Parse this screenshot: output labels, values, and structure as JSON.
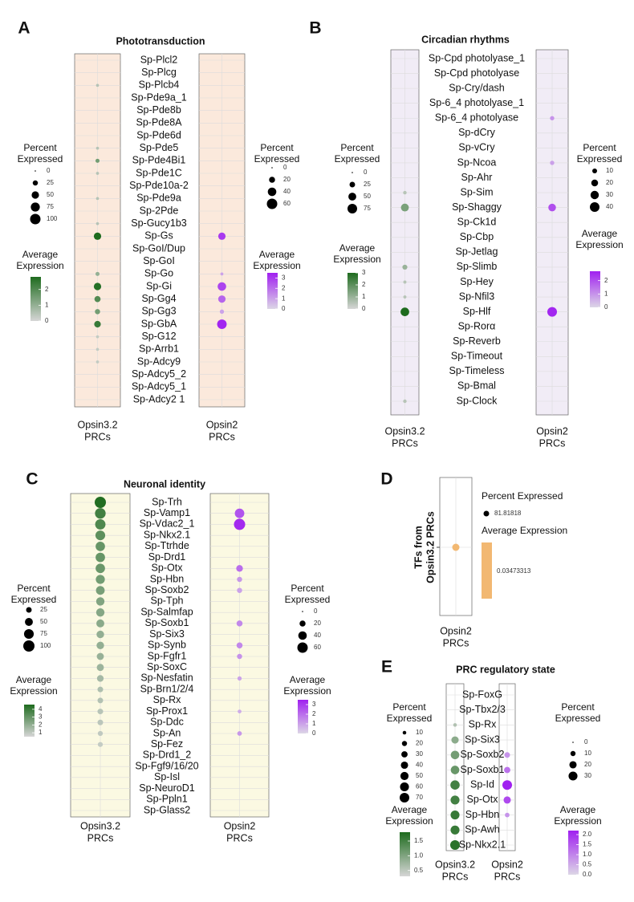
{
  "chart_data": [
    {
      "type": "dotplot",
      "panel": "A",
      "title": "Phototransduction",
      "categories": [
        "Sp-Plcl2",
        "Sp-Plcg",
        "Sp-Plcb4",
        "Sp-Pde9a_1",
        "Sp-Pde8b",
        "Sp-Pde8A",
        "Sp-Pde6d",
        "Sp-Pde5",
        "Sp-Pde4Bi1",
        "Sp-Pde1C",
        "Sp-Pde10a-2",
        "Sp-Pde9a",
        "Sp-2Pde",
        "Sp-Gucy1b3",
        "Sp-Gs",
        "Sp-GoI/Dup",
        "Sp-GoI",
        "Sp-Go",
        "Sp-Gi",
        "Sp-Gg4",
        "Sp-Gg3",
        "Sp-GbA",
        "Sp-G12",
        "Sp-Arrb1",
        "Sp-Adcy9",
        "Sp-Adcy5_2",
        "Sp-Adcy5_1",
        "Sp-Adcy2 1"
      ],
      "background": "#fbe9dc",
      "series": [
        {
          "label": [
            "Opsin3.2",
            "PRCs"
          ],
          "color_low": "#d6d6d6",
          "color_high": "#1e6b1e",
          "percent": [
            null,
            null,
            8,
            null,
            null,
            null,
            null,
            8,
            15,
            8,
            null,
            8,
            null,
            8,
            50,
            null,
            null,
            15,
            50,
            35,
            25,
            40,
            8,
            8,
            8,
            null,
            null,
            null
          ],
          "average": [
            null,
            null,
            0.5,
            null,
            null,
            null,
            null,
            0.5,
            1.5,
            0.5,
            null,
            0.5,
            null,
            0.5,
            2.8,
            null,
            null,
            1,
            2.7,
            2,
            1.5,
            2.4,
            0.3,
            0.3,
            0.3,
            null,
            null,
            null
          ],
          "size_title": [
            "Percent",
            "Expressed"
          ],
          "size_lim": [
            0,
            100
          ],
          "size_ticks": [
            0,
            25,
            50,
            75,
            100
          ],
          "color_title": [
            "Average",
            "Expression"
          ],
          "color_lim": [
            0,
            2.8
          ],
          "color_ticks": [
            0,
            1,
            2
          ]
        },
        {
          "label": [
            "Opsin2",
            "PRCs"
          ],
          "color_low": "#dcd6e6",
          "color_high": "#a020f0",
          "percent": [
            null,
            null,
            null,
            null,
            null,
            null,
            null,
            null,
            null,
            null,
            null,
            null,
            null,
            null,
            30,
            null,
            null,
            5,
            40,
            30,
            10,
            50,
            null,
            null,
            null,
            null,
            null,
            null
          ],
          "average": [
            null,
            null,
            null,
            null,
            null,
            null,
            null,
            null,
            null,
            null,
            null,
            null,
            null,
            null,
            3,
            null,
            null,
            1,
            2.8,
            2.2,
            1,
            3.4,
            null,
            null,
            null,
            null,
            null,
            null
          ],
          "size_title": [
            "Percent",
            "Expressed"
          ],
          "size_lim": [
            0,
            60
          ],
          "size_ticks": [
            0,
            20,
            40,
            60
          ],
          "color_title": [
            "Average",
            "Expression"
          ],
          "color_lim": [
            0,
            3.5
          ],
          "color_ticks": [
            0,
            1,
            2,
            3
          ]
        }
      ]
    },
    {
      "type": "dotplot",
      "panel": "B",
      "title": "Circadian rhythms",
      "categories": [
        "Sp-Cpd photolyase_1",
        "Sp-Cpd photolyase",
        "Sp-Cry/dash",
        "Sp-6_4 photolyase_1",
        "Sp-6_4 photolyase",
        "Sp-dCry",
        "Sp-vCry",
        "Sp-Ncoa",
        "Sp-Ahr",
        "Sp-Sim",
        "Sp-Shaggy",
        "Sp-Ck1d",
        "Sp-Cbp",
        "Sp-Jetlag",
        "Sp-Slimb",
        "Sp-Hey",
        "Sp-Nfil3",
        "Sp-Hlf",
        "Sp-Rorα",
        "Sp-Reverb",
        "Sp-Timeout",
        "Sp-Timeless",
        "Sp-Bmal",
        "Sp-Clock"
      ],
      "background": "#f1ecf6",
      "series": [
        {
          "label": [
            "Opsin3.2",
            "PRCs"
          ],
          "color_low": "#d6d6d6",
          "color_high": "#1e6b1e",
          "percent": [
            null,
            null,
            null,
            null,
            null,
            null,
            null,
            null,
            null,
            10,
            50,
            null,
            null,
            null,
            20,
            8,
            8,
            60,
            null,
            null,
            null,
            null,
            null,
            10
          ],
          "average": [
            null,
            null,
            null,
            null,
            null,
            null,
            null,
            null,
            null,
            0.5,
            1.5,
            null,
            null,
            null,
            1,
            0.5,
            0.5,
            3,
            null,
            null,
            null,
            null,
            null,
            0.5
          ],
          "size_title": [
            "Percent",
            "Expressed"
          ],
          "size_lim": [
            0,
            75
          ],
          "size_ticks": [
            0,
            25,
            50,
            75
          ],
          "color_title": [
            "Average",
            "Expression"
          ],
          "color_lim": [
            0,
            3
          ],
          "color_ticks": [
            0,
            1,
            2,
            3
          ]
        },
        {
          "label": [
            "Opsin2",
            "PRCs"
          ],
          "color_low": "#dcd6e6",
          "color_high": "#a020f0",
          "percent": [
            null,
            null,
            null,
            null,
            8,
            null,
            null,
            8,
            null,
            null,
            25,
            null,
            null,
            null,
            null,
            null,
            null,
            40,
            null,
            null,
            null,
            null,
            null,
            null
          ],
          "average": [
            null,
            null,
            null,
            null,
            1,
            null,
            null,
            0.8,
            null,
            null,
            2,
            null,
            null,
            null,
            null,
            null,
            null,
            2.6,
            null,
            null,
            null,
            null,
            null,
            null
          ],
          "size_title": [
            "Percent",
            "Expressed"
          ],
          "size_lim": [
            0,
            40
          ],
          "size_ticks": [
            10,
            20,
            30,
            40
          ],
          "color_title": [
            "Average",
            "Expression"
          ],
          "color_lim": [
            0,
            2.7
          ],
          "color_ticks": [
            0,
            1,
            2
          ]
        }
      ]
    },
    {
      "type": "dotplot",
      "panel": "C",
      "title": "Neuronal identity",
      "categories": [
        "Sp-Trh",
        "Sp-Vamp1",
        "Sp-Vdac2_1",
        "Sp-Nkx2.1",
        "Sp-Ttrhde",
        "Sp-Drd1",
        "Sp-Otx",
        "Sp-Hbn",
        "Sp-Soxb2",
        "Sp-Tph",
        "Sp-Salmfap",
        "Sp-Soxb1",
        "Sp-Six3",
        "Sp-Synb",
        "Sp-Fgfr1",
        "Sp-SoxC",
        "Sp-Nesfatin",
        "Sp-Brn1/2/4",
        "Sp-Rx",
        "Sp-Prox1",
        "Sp-Ddc",
        "Sp-An",
        "Sp-Fez",
        "Sp-Drd1_2",
        "Sp-Fgf9/16/20",
        "Sp-Isl",
        "Sp-NeuroD1",
        "Sp-Ppln1",
        "Sp-Glass2"
      ],
      "background": "#fbf9e2",
      "series": [
        {
          "label": [
            "Opsin3.2",
            "PRCs"
          ],
          "color_low": "#d6d6d6",
          "color_high": "#1e6b1e",
          "percent": [
            100,
            90,
            85,
            75,
            70,
            70,
            70,
            65,
            60,
            55,
            55,
            50,
            45,
            45,
            40,
            40,
            35,
            25,
            25,
            25,
            25,
            20,
            20,
            null,
            null,
            null,
            null,
            null,
            null
          ],
          "average": [
            4.5,
            3.8,
            3.5,
            3.2,
            3,
            3,
            2.9,
            2.7,
            2.6,
            2.4,
            2.3,
            2.2,
            2,
            2,
            1.9,
            1.8,
            1.6,
            1.4,
            1.3,
            1.2,
            1.1,
            1,
            0.9,
            null,
            null,
            null,
            null,
            null,
            null
          ],
          "size_title": [
            "Percent",
            "Expressed"
          ],
          "size_lim": [
            0,
            100
          ],
          "size_ticks": [
            25,
            50,
            75,
            100
          ],
          "color_title": [
            "Average",
            "Expression"
          ],
          "color_lim": [
            0.5,
            4.6
          ],
          "color_ticks": [
            1,
            2,
            3,
            4
          ]
        },
        {
          "label": [
            "Opsin2",
            "PRCs"
          ],
          "color_low": "#dcd6e6",
          "color_high": "#a020f0",
          "percent": [
            null,
            50,
            70,
            null,
            null,
            null,
            25,
            15,
            15,
            null,
            null,
            20,
            null,
            20,
            15,
            null,
            10,
            null,
            null,
            8,
            null,
            12,
            null,
            null,
            null,
            null,
            null,
            null,
            null
          ],
          "average": [
            null,
            2.5,
            3.3,
            null,
            null,
            null,
            2,
            1.2,
            1,
            null,
            null,
            1.5,
            null,
            1.5,
            1.3,
            null,
            1,
            null,
            null,
            0.8,
            null,
            1.2,
            null,
            null,
            null,
            null,
            null,
            null,
            null
          ],
          "size_title": [
            "Percent",
            "Expressed"
          ],
          "size_lim": [
            0,
            70
          ],
          "size_ticks": [
            0,
            20,
            40,
            60
          ],
          "color_title": [
            "Average",
            "Expression"
          ],
          "color_lim": [
            0,
            3.5
          ],
          "color_ticks": [
            0,
            1,
            2,
            3
          ]
        }
      ]
    },
    {
      "type": "single",
      "panel": "D",
      "ylabel": [
        "TFs from",
        "Opsin3.2 PRCs"
      ],
      "label": [
        "Opsin2",
        "PRCs"
      ],
      "percent": 81.81818,
      "average": 0.03473313,
      "color": "#f2b872",
      "size_title": "Percent Expressed",
      "color_title": "Average Expression"
    },
    {
      "type": "dotplot",
      "panel": "E",
      "title": "PRC regulatory state",
      "categories": [
        "Sp-FoxG",
        "Sp-Tbx2/3",
        "Sp-Rx",
        "Sp-Six3",
        "Sp-Soxb2",
        "Sp-Soxb1",
        "Sp-Id",
        "Sp-Otx",
        "Sp-Hbn",
        "Sp-Awh",
        "Sp-Nkx2.1"
      ],
      "background": "#ffffff",
      "series": [
        {
          "label": [
            "Opsin3.2",
            "PRCs"
          ],
          "color_low": "#d6d6d6",
          "color_high": "#1e6b1e",
          "percent": [
            null,
            null,
            10,
            40,
            55,
            55,
            65,
            60,
            60,
            60,
            70
          ],
          "average": [
            null,
            null,
            0.6,
            0.9,
            1.1,
            1.2,
            1.5,
            1.5,
            1.6,
            1.6,
            1.7
          ],
          "size_title": [
            "Percent",
            "Expressed"
          ],
          "size_lim": [
            0,
            70
          ],
          "size_ticks": [
            10,
            20,
            30,
            40,
            50,
            60,
            70
          ],
          "color_title": [
            "Average",
            "Expression"
          ],
          "color_lim": [
            0.3,
            1.8
          ],
          "color_ticks": [
            {
              "value": 0.5,
              "label": "0.5"
            },
            {
              "value": 1,
              "label": "1.0"
            },
            {
              "value": 1.5,
              "label": "1.5"
            }
          ]
        },
        {
          "label": [
            "Opsin2",
            "PRCs"
          ],
          "color_low": "#dcd6e6",
          "color_high": "#a020f0",
          "percent": [
            null,
            null,
            null,
            null,
            12,
            15,
            35,
            20,
            8,
            null,
            null
          ],
          "average": [
            null,
            null,
            null,
            null,
            0.8,
            1.2,
            2.2,
            1.7,
            0.8,
            null,
            null
          ],
          "size_title": [
            "Percent",
            "Expressed"
          ],
          "size_lim": [
            0,
            35
          ],
          "size_ticks": [
            0,
            10,
            20,
            30
          ],
          "color_title": [
            "Average",
            "Expression"
          ],
          "color_lim": [
            0,
            2.2
          ],
          "color_ticks": [
            {
              "value": 0,
              "label": "0.0"
            },
            {
              "value": 0.5,
              "label": "0.5"
            },
            {
              "value": 1,
              "label": "1.0"
            },
            {
              "value": 1.5,
              "label": "1.5"
            },
            {
              "value": 2,
              "label": "2.0"
            }
          ]
        }
      ]
    }
  ]
}
